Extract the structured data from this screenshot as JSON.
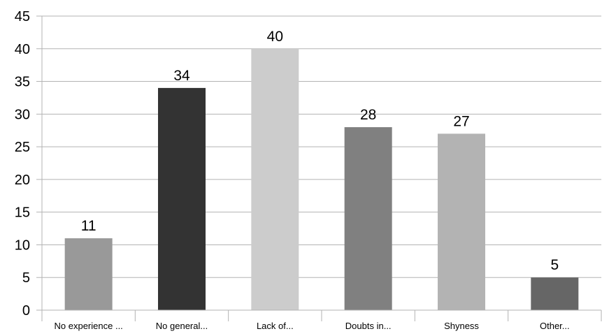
{
  "chart_data": {
    "type": "bar",
    "categories": [
      "No experience ...",
      "No general...",
      "Lack of...",
      "Doubts in...",
      "Shyness",
      "Other..."
    ],
    "values": [
      11,
      34,
      40,
      28,
      27,
      5
    ],
    "data_labels": [
      "11",
      "34",
      "40",
      "28",
      "27",
      "5"
    ],
    "y_ticks": [
      "0",
      "5",
      "10",
      "15",
      "20",
      "25",
      "30",
      "35",
      "40",
      "45"
    ],
    "ylim": [
      0,
      45
    ],
    "grid": true,
    "legend": "none",
    "colors": [
      "#999999",
      "#333333",
      "#cccccc",
      "#808080",
      "#b3b3b3",
      "#666666"
    ]
  }
}
